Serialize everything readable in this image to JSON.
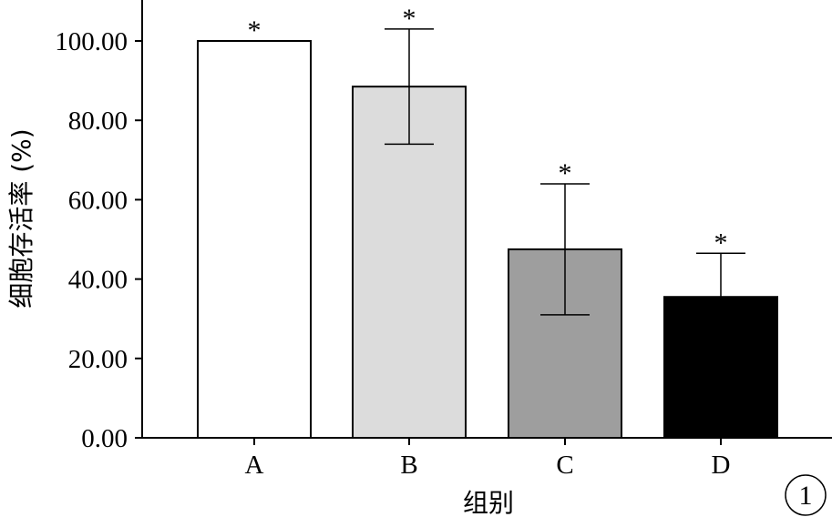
{
  "chart_data": {
    "type": "bar",
    "title": "",
    "xlabel": "组别",
    "ylabel": "细胞存活率 (%)",
    "categories": [
      "A",
      "B",
      "C",
      "D"
    ],
    "values": [
      100.0,
      88.5,
      47.5,
      35.5
    ],
    "error": [
      0.0,
      14.5,
      16.5,
      11.0
    ],
    "significance": [
      "*",
      "*",
      "*",
      "*"
    ],
    "bar_colors": [
      "#ffffff",
      "#dcdcdc",
      "#9e9e9e",
      "#000000"
    ],
    "ylim": [
      0,
      110
    ],
    "yticks": [
      "0.00",
      "20.00",
      "40.00",
      "60.00",
      "80.00",
      "100.00"
    ],
    "ytick_values": [
      0,
      20,
      40,
      60,
      80,
      100
    ],
    "grid": false,
    "panel_label": "1"
  }
}
